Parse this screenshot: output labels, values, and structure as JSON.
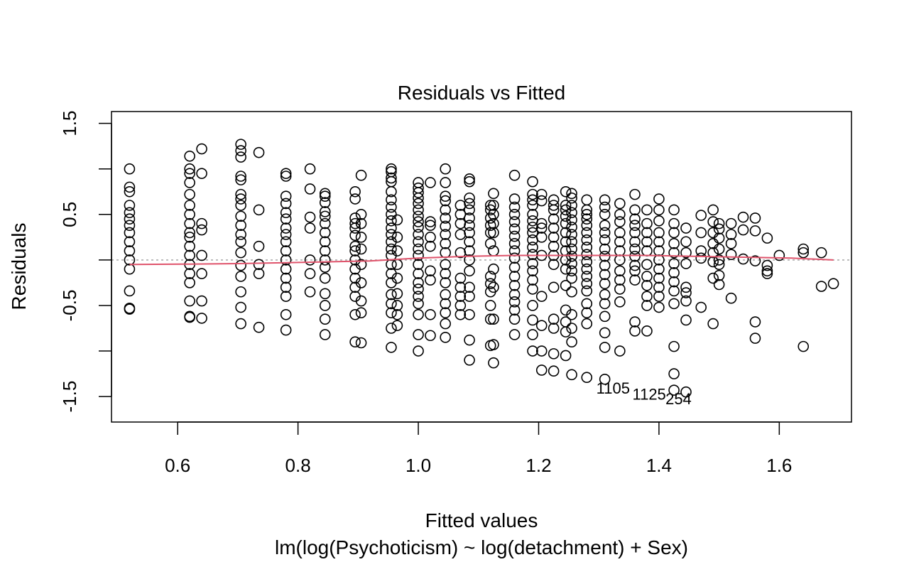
{
  "chart_data": {
    "type": "scatter",
    "title": "Residuals vs Fitted",
    "xlabel": "Fitted values",
    "subtitle": "lm(log(Psychoticism) ~ log(detachment) + Sex)",
    "ylabel": "Residuals",
    "xlim": [
      0.49,
      1.72
    ],
    "ylim": [
      -1.78,
      1.63
    ],
    "x_ticks": [
      0.6,
      0.8,
      1.0,
      1.2,
      1.4,
      1.6
    ],
    "x_tick_labels": [
      "0.6",
      "0.8",
      "1.0",
      "1.2",
      "1.4",
      "1.6"
    ],
    "y_ticks": [
      -1.5,
      -1.0,
      -0.5,
      0.0,
      0.5,
      1.0,
      1.5
    ],
    "y_tick_labels": [
      "-1.5",
      "",
      "-0.5",
      "",
      "0.5",
      "",
      "1.5"
    ],
    "zero_line": {
      "y": 0,
      "color": "#9e9e9e",
      "style": "dotted"
    },
    "smooth_color": "#df536b",
    "point_color": "#000000",
    "smooth": {
      "x": [
        0.52,
        0.62,
        0.7,
        0.78,
        0.85,
        0.92,
        1.0,
        1.08,
        1.16,
        1.22,
        1.3,
        1.38,
        1.46,
        1.54,
        1.62,
        1.69
      ],
      "y": [
        -0.05,
        -0.045,
        -0.04,
        -0.03,
        -0.02,
        -0.01,
        0.02,
        0.04,
        0.05,
        0.05,
        0.05,
        0.05,
        0.04,
        0.03,
        0.02,
        0.0
      ]
    },
    "columns": [
      {
        "x": 0.52,
        "y": [
          1.0,
          0.8,
          0.75,
          0.6,
          0.52,
          0.45,
          0.38,
          0.3,
          0.2,
          0.1,
          0.0,
          -0.1,
          -0.34,
          -0.53,
          -0.54
        ]
      },
      {
        "x": 0.62,
        "y": [
          1.14,
          1.0,
          0.95,
          0.85,
          0.72,
          0.6,
          0.5,
          0.4,
          0.3,
          0.25,
          0.15,
          0.05,
          -0.05,
          -0.15,
          -0.25,
          -0.45,
          -0.62,
          -0.63
        ]
      },
      {
        "x": 0.64,
        "y": [
          1.22,
          0.95,
          0.4,
          0.33,
          0.05,
          -0.15,
          -0.45,
          -0.64
        ]
      },
      {
        "x": 0.705,
        "y": [
          1.27,
          1.2,
          1.13,
          0.92,
          0.88,
          0.72,
          0.67,
          0.6,
          0.48,
          0.38,
          0.28,
          0.2,
          0.08,
          -0.06,
          -0.18,
          -0.35,
          -0.52,
          -0.7
        ]
      },
      {
        "x": 0.735,
        "y": [
          1.18,
          0.55,
          0.15,
          -0.05,
          -0.15,
          -0.74
        ]
      },
      {
        "x": 0.78,
        "y": [
          0.95,
          0.92,
          0.7,
          0.62,
          0.52,
          0.45,
          0.35,
          0.28,
          0.2,
          0.1,
          0.0,
          -0.1,
          -0.2,
          -0.3,
          -0.4,
          -0.6,
          -0.77
        ]
      },
      {
        "x": 0.82,
        "y": [
          1.0,
          0.78,
          0.47,
          0.35,
          0.0,
          -0.15,
          -0.35
        ]
      },
      {
        "x": 0.845,
        "y": [
          0.73,
          0.7,
          0.63,
          0.53,
          0.48,
          0.4,
          0.3,
          0.2,
          0.1,
          0.0,
          -0.08,
          -0.2,
          -0.37,
          -0.5,
          -0.65,
          -0.82
        ]
      },
      {
        "x": 0.895,
        "y": [
          0.75,
          0.67,
          0.46,
          0.4,
          0.35,
          0.27,
          0.15,
          0.1,
          0.0,
          -0.1,
          -0.2,
          -0.3,
          -0.4,
          -0.6,
          -0.9
        ]
      },
      {
        "x": 0.905,
        "y": [
          0.93,
          0.5,
          0.4,
          0.25,
          0.12,
          -0.05,
          -0.25,
          -0.45,
          -0.58,
          -0.91
        ]
      },
      {
        "x": 0.955,
        "y": [
          1.0,
          0.97,
          0.9,
          0.86,
          0.75,
          0.66,
          0.58,
          0.5,
          0.43,
          0.35,
          0.28,
          0.2,
          0.12,
          0.05,
          -0.05,
          -0.15,
          -0.25,
          -0.38,
          -0.48,
          -0.58,
          -0.75,
          -0.96
        ]
      },
      {
        "x": 0.965,
        "y": [
          0.44,
          0.25,
          0.1,
          -0.05,
          -0.2,
          -0.37,
          -0.5,
          -0.6,
          -0.72
        ]
      },
      {
        "x": 1.0,
        "y": [
          0.85,
          0.79,
          0.74,
          0.68,
          0.62,
          0.55,
          0.48,
          0.42,
          0.36,
          0.28,
          0.2,
          0.12,
          0.05,
          -0.05,
          -0.15,
          -0.25,
          -0.32,
          -0.4,
          -0.48,
          -0.6,
          -0.82,
          -1.0
        ]
      },
      {
        "x": 1.02,
        "y": [
          0.85,
          0.42,
          0.38,
          0.25,
          0.15,
          -0.12,
          -0.22,
          -0.6,
          -0.83
        ]
      },
      {
        "x": 1.045,
        "y": [
          1.0,
          0.85,
          0.7,
          0.65,
          0.55,
          0.46,
          0.37,
          0.28,
          0.18,
          0.08,
          -0.05,
          -0.15,
          -0.25,
          -0.38,
          -0.48,
          -0.58,
          -0.7,
          -0.85
        ]
      },
      {
        "x": 1.07,
        "y": [
          0.6,
          0.5,
          0.4,
          0.28,
          0.08,
          -0.2,
          -0.3,
          -0.4,
          -0.5,
          -0.6
        ]
      },
      {
        "x": 1.085,
        "y": [
          0.89,
          0.86,
          0.68,
          0.62,
          0.55,
          0.46,
          0.38,
          0.3,
          0.2,
          0.1,
          0.0,
          -0.12,
          -0.3,
          -0.4,
          -0.6,
          -0.88,
          -1.1
        ]
      },
      {
        "x": 1.12,
        "y": [
          0.6,
          0.55,
          0.46,
          0.38,
          0.3,
          0.18,
          -0.18,
          -0.26,
          -0.35,
          -0.5,
          -0.65,
          -0.94
        ]
      },
      {
        "x": 1.125,
        "y": [
          0.73,
          0.6,
          0.5,
          0.4,
          0.3,
          0.1,
          -0.1,
          -0.3,
          -0.65,
          -0.93,
          -1.13
        ]
      },
      {
        "x": 1.16,
        "y": [
          0.93,
          0.67,
          0.58,
          0.5,
          0.42,
          0.34,
          0.26,
          0.18,
          0.1,
          0.02,
          -0.08,
          -0.18,
          -0.28,
          -0.38,
          -0.46,
          -0.55,
          -0.65,
          -0.82
        ]
      },
      {
        "x": 1.19,
        "y": [
          0.86,
          0.72,
          0.66,
          0.6,
          0.5,
          0.43,
          0.36,
          0.3,
          0.22,
          0.14,
          0.06,
          -0.04,
          -0.12,
          -0.22,
          -0.32,
          -0.5,
          -0.66,
          -0.82,
          -1.0
        ]
      },
      {
        "x": 1.205,
        "y": [
          0.72,
          0.65,
          0.4,
          0.35,
          0.25,
          0.05,
          -0.4,
          -0.72,
          -1.0,
          -1.21
        ]
      },
      {
        "x": 1.225,
        "y": [
          0.66,
          0.6,
          0.55,
          0.45,
          0.35,
          0.25,
          0.15,
          0.05,
          -0.05,
          -0.3,
          -0.65,
          -0.75,
          -1.03,
          -1.22
        ]
      },
      {
        "x": 1.245,
        "y": [
          0.75,
          0.6,
          0.55,
          0.48,
          0.4,
          0.3,
          0.2,
          0.1,
          0.0,
          -0.1,
          -0.28,
          -0.55,
          -0.68,
          -0.79,
          -1.05
        ]
      },
      {
        "x": 1.255,
        "y": [
          0.73,
          0.68,
          0.6,
          0.52,
          0.44,
          0.36,
          0.28,
          0.2,
          0.12,
          0.04,
          -0.04,
          -0.12,
          -0.2,
          -0.35,
          -0.6,
          -0.75,
          -0.9,
          -1.26
        ]
      },
      {
        "x": 1.28,
        "y": [
          0.66,
          0.55,
          0.5,
          0.45,
          0.38,
          0.3,
          0.22,
          0.14,
          0.06,
          -0.02,
          -0.1,
          -0.18,
          -0.26,
          -0.34,
          -0.48,
          -0.58,
          -0.7,
          -1.29
        ]
      },
      {
        "x": 1.31,
        "y": [
          0.66,
          0.58,
          0.5,
          0.38,
          0.3,
          0.22,
          0.12,
          0.04,
          -0.06,
          -0.16,
          -0.26,
          -0.38,
          -0.48,
          -0.62,
          -0.8,
          -0.96,
          -1.31
        ]
      },
      {
        "x": 1.335,
        "y": [
          0.62,
          0.5,
          0.42,
          0.3,
          0.2,
          0.1,
          0.0,
          -0.12,
          -0.22,
          -0.32,
          -0.46,
          -1.0
        ]
      },
      {
        "x": 1.36,
        "y": [
          0.72,
          0.55,
          0.45,
          0.38,
          0.3,
          0.2,
          0.12,
          0.04,
          -0.06,
          -0.12,
          -0.22,
          -0.68,
          -0.78
        ]
      },
      {
        "x": 1.38,
        "y": [
          0.55,
          0.4,
          0.3,
          0.2,
          0.1,
          -0.05,
          -0.18,
          -0.28,
          -0.4,
          -0.5,
          -0.78
        ]
      },
      {
        "x": 1.4,
        "y": [
          0.67,
          0.55,
          0.43,
          0.3,
          0.2,
          0.1,
          0.0,
          -0.1,
          -0.2,
          -0.3,
          -0.4,
          -0.52
        ]
      },
      {
        "x": 1.425,
        "y": [
          0.55,
          0.4,
          0.3,
          0.18,
          0.08,
          -0.04,
          -0.14,
          -0.24,
          -0.34,
          -0.48,
          -0.95,
          -1.25,
          -1.43
        ]
      },
      {
        "x": 1.445,
        "y": [
          0.35,
          0.2,
          0.08,
          -0.04,
          -0.3,
          -0.36,
          -0.45,
          -0.66,
          -1.45
        ]
      },
      {
        "x": 1.47,
        "y": [
          0.49,
          0.3,
          0.1,
          0.02,
          -0.52
        ]
      },
      {
        "x": 1.49,
        "y": [
          0.55,
          0.42,
          0.3,
          0.18,
          0.08,
          -0.02,
          -0.2,
          -0.7
        ]
      },
      {
        "x": 1.5,
        "y": [
          0.4,
          0.34,
          0.24,
          0.12,
          0.0,
          -0.05,
          -0.17,
          -0.27
        ]
      },
      {
        "x": 1.52,
        "y": [
          0.4,
          0.28,
          0.18,
          0.06,
          -0.42
        ]
      },
      {
        "x": 1.54,
        "y": [
          0.47,
          0.33,
          0.01
        ]
      },
      {
        "x": 1.56,
        "y": [
          0.46,
          0.32,
          -0.01,
          -0.68,
          -0.86
        ]
      },
      {
        "x": 1.58,
        "y": [
          0.24,
          -0.06,
          -0.12,
          -0.15
        ]
      },
      {
        "x": 1.6,
        "y": [
          0.05
        ]
      },
      {
        "x": 1.64,
        "y": [
          0.12,
          0.08,
          -0.95
        ]
      },
      {
        "x": 1.67,
        "y": [
          0.08,
          -0.29
        ]
      },
      {
        "x": 1.69,
        "y": [
          -0.26
        ]
      }
    ],
    "outliers": [
      {
        "label": "1105",
        "x": 1.31,
        "y": -1.31
      },
      {
        "label": "1125",
        "x": 1.37,
        "y": -1.38
      },
      {
        "label": "254",
        "x": 1.425,
        "y": -1.43
      }
    ]
  }
}
